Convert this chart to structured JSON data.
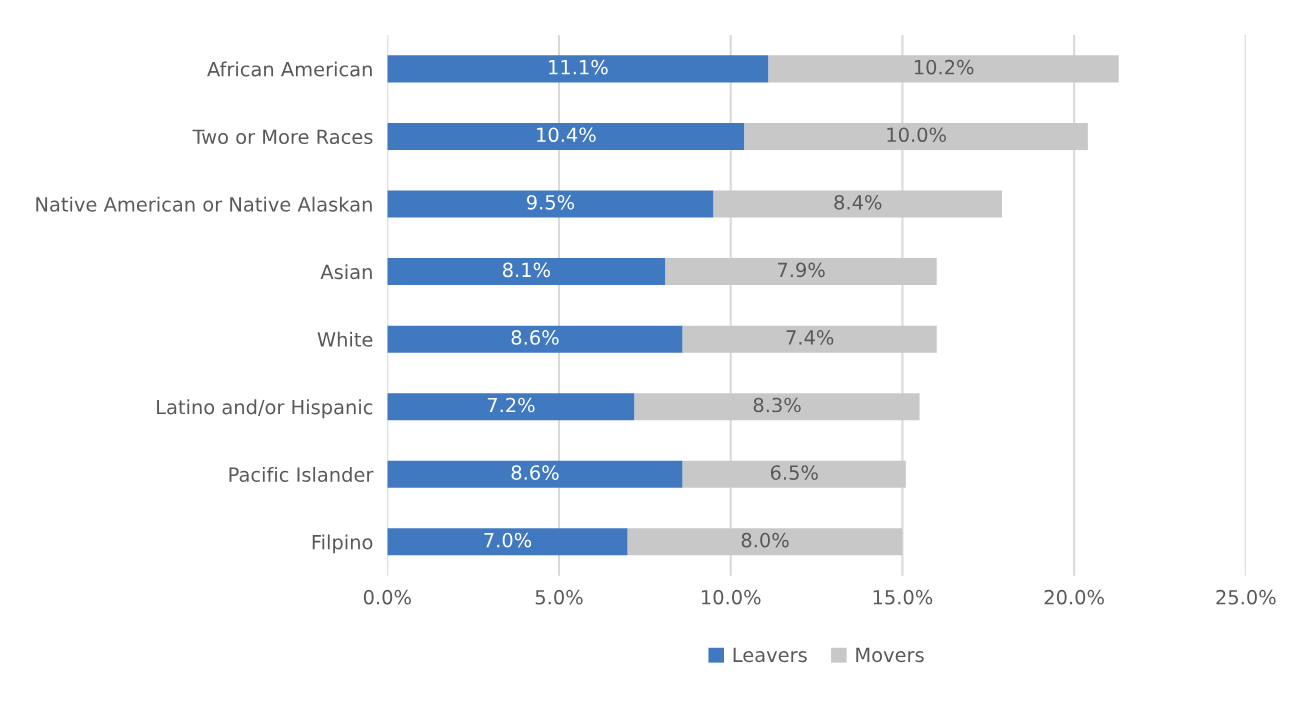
{
  "chart_data": {
    "type": "bar",
    "orientation": "horizontal",
    "stacked": true,
    "categories": [
      "African American",
      "Two or More Races",
      "Native American or Native Alaskan",
      "Asian",
      "White",
      "Latino and/or Hispanic",
      "Pacific Islander",
      "Filpino"
    ],
    "series": [
      {
        "name": "Leavers",
        "color": "#4179c0",
        "values": [
          11.1,
          10.4,
          9.5,
          8.1,
          8.6,
          7.2,
          8.6,
          7.0
        ],
        "value_labels": [
          "11.1%",
          "10.4%",
          "9.5%",
          "8.1%",
          "8.6%",
          "7.2%",
          "8.6%",
          "7.0%"
        ]
      },
      {
        "name": "Movers",
        "color": "#c8c8c9",
        "values": [
          10.2,
          10.0,
          8.4,
          7.9,
          7.4,
          8.3,
          6.5,
          8.0
        ],
        "value_labels": [
          "10.2%",
          "10.0%",
          "8.4%",
          "7.9%",
          "7.4%",
          "8.3%",
          "6.5%",
          "8.0%"
        ]
      }
    ],
    "xlim": [
      0,
      25
    ],
    "xticks": [
      {
        "value": 0,
        "label": "0.0%"
      },
      {
        "value": 5,
        "label": "5.0%"
      },
      {
        "value": 10,
        "label": "10.0%"
      },
      {
        "value": 15,
        "label": "15.0%"
      },
      {
        "value": 20,
        "label": "20.0%"
      },
      {
        "value": 25,
        "label": "25.0%"
      }
    ],
    "grid": "x",
    "legend": "bottom"
  }
}
